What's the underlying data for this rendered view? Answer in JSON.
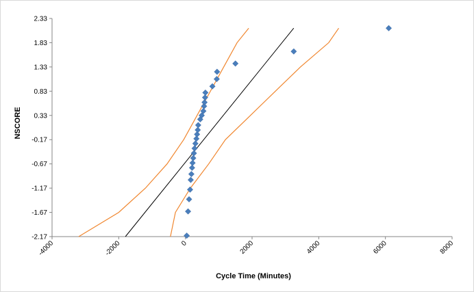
{
  "chart_data": {
    "type": "scatter",
    "title": "",
    "xlabel": "Cycle Time (Minutes)",
    "ylabel": "NSCORE",
    "xlim": [
      -4000,
      8000
    ],
    "ylim": [
      -2.17,
      2.33
    ],
    "x_ticks": [
      -4000,
      -2000,
      0,
      2000,
      4000,
      6000,
      8000
    ],
    "x_tick_labels": [
      "-4000",
      "-2000",
      "0",
      "2000",
      "4000",
      "6000",
      "8000"
    ],
    "y_ticks": [
      -2.17,
      -1.67,
      -1.17,
      -0.67,
      -0.17,
      0.33,
      0.83,
      1.33,
      1.83,
      2.33
    ],
    "y_tick_labels": [
      "-2.17",
      "-1.67",
      "-1.17",
      "-0.67",
      "-0.17",
      "0.33",
      "0.83",
      "1.33",
      "1.83",
      "2.33"
    ],
    "grid": false,
    "legend": "none",
    "colors": {
      "points": "#4a7ebb",
      "fit": "#000000",
      "bounds": "#f0862e"
    },
    "points": [
      {
        "x": 40,
        "y": -2.15
      },
      {
        "x": 80,
        "y": -1.65
      },
      {
        "x": 110,
        "y": -1.4
      },
      {
        "x": 140,
        "y": -1.2
      },
      {
        "x": 160,
        "y": -1.0
      },
      {
        "x": 180,
        "y": -0.88
      },
      {
        "x": 200,
        "y": -0.75
      },
      {
        "x": 215,
        "y": -0.65
      },
      {
        "x": 235,
        "y": -0.55
      },
      {
        "x": 255,
        "y": -0.45
      },
      {
        "x": 275,
        "y": -0.35
      },
      {
        "x": 300,
        "y": -0.25
      },
      {
        "x": 330,
        "y": -0.15
      },
      {
        "x": 350,
        "y": -0.06
      },
      {
        "x": 370,
        "y": 0.03
      },
      {
        "x": 385,
        "y": 0.13
      },
      {
        "x": 445,
        "y": 0.25
      },
      {
        "x": 490,
        "y": 0.33
      },
      {
        "x": 540,
        "y": 0.42
      },
      {
        "x": 560,
        "y": 0.52
      },
      {
        "x": 575,
        "y": 0.6
      },
      {
        "x": 590,
        "y": 0.7
      },
      {
        "x": 600,
        "y": 0.8
      },
      {
        "x": 810,
        "y": 0.93
      },
      {
        "x": 940,
        "y": 1.08
      },
      {
        "x": 950,
        "y": 1.23
      },
      {
        "x": 1500,
        "y": 1.4
      },
      {
        "x": 3250,
        "y": 1.65
      },
      {
        "x": 6100,
        "y": 2.13
      }
    ],
    "fit_line": [
      [
        -1800,
        -2.17
      ],
      [
        3250,
        2.13
      ]
    ],
    "lower_bound": [
      [
        -3200,
        -2.17
      ],
      [
        -2000,
        -1.67
      ],
      [
        -1200,
        -1.17
      ],
      [
        -550,
        -0.67
      ],
      [
        -50,
        -0.17
      ],
      [
        350,
        0.33
      ],
      [
        750,
        0.83
      ],
      [
        1150,
        1.33
      ],
      [
        1550,
        1.83
      ],
      [
        1900,
        2.13
      ]
    ],
    "upper_bound": [
      [
        -450,
        -2.17
      ],
      [
        -300,
        -1.67
      ],
      [
        150,
        -1.17
      ],
      [
        700,
        -0.67
      ],
      [
        1200,
        -0.17
      ],
      [
        1950,
        0.33
      ],
      [
        2700,
        0.83
      ],
      [
        3450,
        1.33
      ],
      [
        4300,
        1.83
      ],
      [
        4600,
        2.13
      ]
    ]
  }
}
